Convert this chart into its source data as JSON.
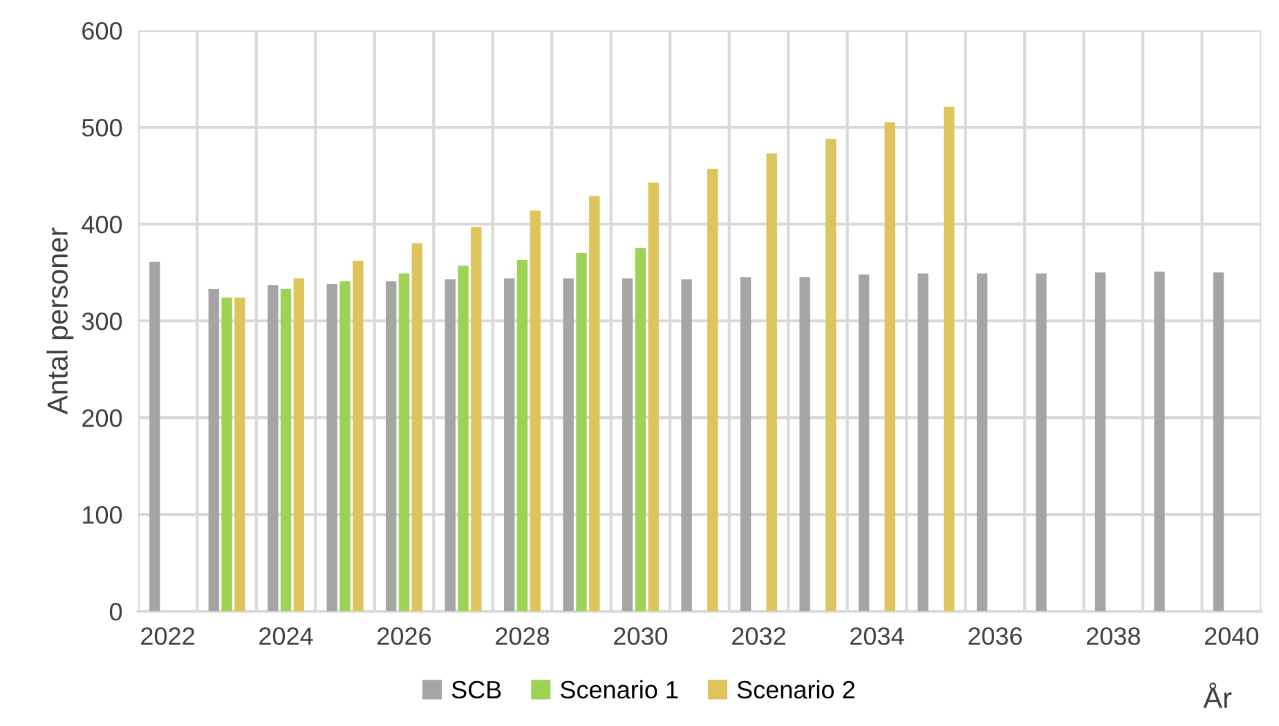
{
  "chart_data": {
    "type": "bar",
    "ylabel": "Antal personer",
    "xlabel": "År",
    "categories": [
      "2022",
      null,
      "2024",
      null,
      "2026",
      null,
      "2028",
      null,
      "2030",
      null,
      "2032",
      null,
      "2034",
      null,
      "2036",
      null,
      "2038",
      null,
      "2040"
    ],
    "series": [
      {
        "name": "SCB",
        "color": "#a5a5a5",
        "values": [
          361,
          333,
          337,
          338,
          341,
          343,
          344,
          344,
          344,
          343,
          345,
          345,
          348,
          349,
          349,
          349,
          350,
          351,
          350
        ]
      },
      {
        "name": "Scenario 1",
        "color": "#9dd354",
        "values": [
          null,
          324,
          333,
          341,
          349,
          357,
          363,
          370,
          375,
          null,
          null,
          null,
          null,
          null,
          null,
          null,
          null,
          null,
          null
        ]
      },
      {
        "name": "Scenario 2",
        "color": "#ddc45b",
        "values": [
          null,
          324,
          344,
          362,
          380,
          397,
          414,
          429,
          443,
          457,
          473,
          488,
          505,
          521,
          null,
          null,
          null,
          null,
          null
        ]
      }
    ],
    "ylim": [
      0,
      600
    ],
    "yticks": [
      0,
      100,
      200,
      300,
      400,
      500,
      600
    ],
    "grid": true,
    "legend": "bottom"
  }
}
